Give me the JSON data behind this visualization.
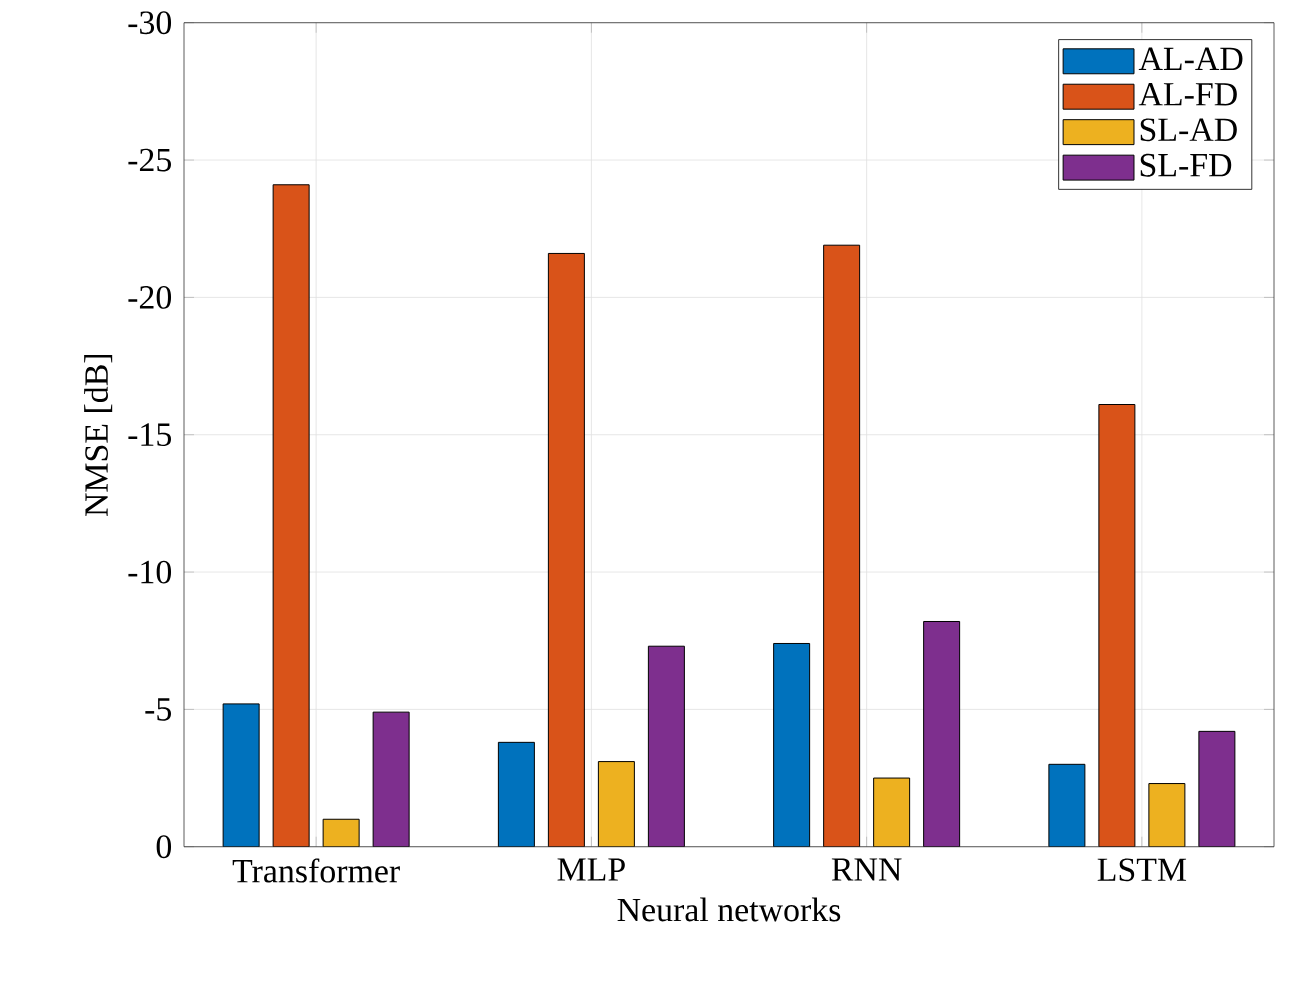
{
  "chart_data": {
    "type": "bar",
    "xlabel": "Neural networks",
    "ylabel": "NMSE [dB]",
    "categories": [
      "Transformer",
      "MLP",
      "RNN",
      "LSTM"
    ],
    "series": [
      {
        "name": "AL-AD",
        "color": "#0072bd",
        "values": [
          -5.2,
          -3.8,
          -7.4,
          -3.0
        ]
      },
      {
        "name": "AL-FD",
        "color": "#d95319",
        "values": [
          -24.1,
          -21.6,
          -21.9,
          -16.1
        ]
      },
      {
        "name": "SL-AD",
        "color": "#edb120",
        "values": [
          -1.0,
          -3.1,
          -2.5,
          -2.3
        ]
      },
      {
        "name": "SL-FD",
        "color": "#7e2f8e",
        "values": [
          -4.9,
          -7.3,
          -8.2,
          -4.2
        ]
      }
    ],
    "ylim": [
      0,
      -30
    ],
    "yticks": [
      0,
      -5,
      -10,
      -15,
      -20,
      -25,
      -30
    ],
    "grid": true,
    "legend": "top right"
  }
}
